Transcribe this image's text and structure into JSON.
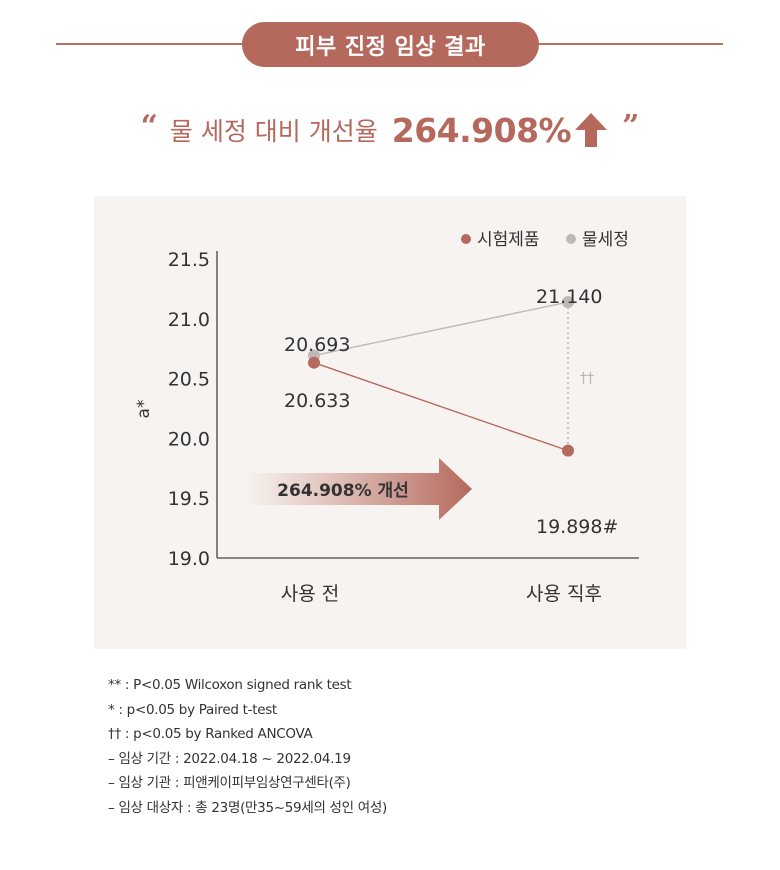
{
  "header": {
    "title": "피부 진정 임상 결과"
  },
  "headline": {
    "quote_open": "“",
    "text": "물 세정 대비 개선율",
    "value": "264.908%",
    "quote_close": "”",
    "arrow_icon": "up-arrow-icon",
    "accent_color": "#b5695d"
  },
  "chart_data": {
    "type": "line",
    "ylabel": "a*",
    "ylim": [
      19.0,
      21.5
    ],
    "yticks": [
      "21.5",
      "21.0",
      "20.5",
      "20.0",
      "19.5",
      "19.0"
    ],
    "categories": [
      "사용 전",
      "사용 직후"
    ],
    "legend_position": "top-right",
    "grid": false,
    "series": [
      {
        "name": "시험제품",
        "values": [
          20.633,
          19.898
        ],
        "labels": [
          "20.633",
          "19.898#"
        ],
        "color": "#b5695d"
      },
      {
        "name": "물세정",
        "values": [
          20.693,
          21.14
        ],
        "labels": [
          "20.693",
          "21.140"
        ],
        "color": "#bdb9b7"
      }
    ],
    "annotations": {
      "improvement_label": "264.908% 개선",
      "significance_mark": "††"
    }
  },
  "notes": [
    "** : P<0.05 Wilcoxon signed rank test",
    "* : p<0.05 by Paired t-test",
    "†† : p<0.05 by Ranked ANCOVA",
    "–  임상 기간 : 2022.04.18 ~ 2022.04.19",
    "–  임상 기관 : 피앤케이피부임상연구센타(주)",
    "–  임상 대상자 : 총 23명(만35~59세의 성인 여성)"
  ]
}
